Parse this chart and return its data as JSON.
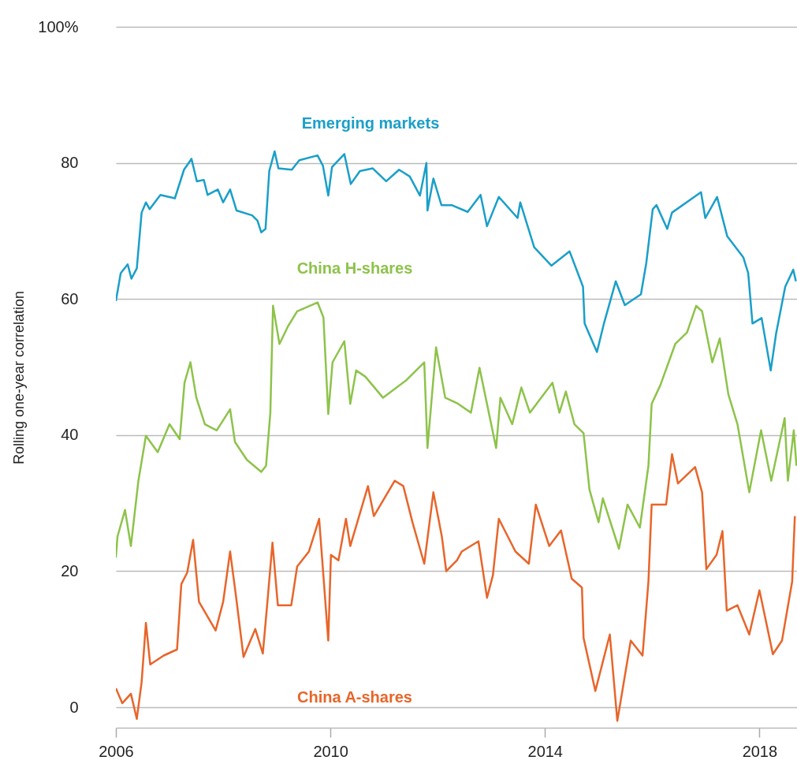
{
  "chart_data": {
    "type": "line",
    "ylabel": "Rolling one-year correlation",
    "xlim": [
      2006,
      2018.7
    ],
    "xticks": [
      2006,
      2010,
      2014,
      2018
    ],
    "ylim": [
      -3,
      100
    ],
    "yticks": [
      0,
      20,
      40,
      60,
      80,
      {
        "value": 100,
        "label": "100%"
      }
    ],
    "grid": "y",
    "legend": false,
    "series": [
      {
        "name": "Emerging markets",
        "color": "#1a9fc9",
        "x": [
          2006.0,
          2006.09,
          2006.22,
          2006.29,
          2006.39,
          2006.48,
          2006.56,
          2006.63,
          2006.83,
          2007.1,
          2007.27,
          2007.41,
          2007.51,
          2007.64,
          2007.71,
          2007.9,
          2008.0,
          2008.13,
          2008.25,
          2008.54,
          2008.64,
          2008.71,
          2008.79,
          2008.86,
          2008.96,
          2009.03,
          2009.28,
          2009.42,
          2009.76,
          2009.86,
          2009.96,
          2010.03,
          2010.26,
          2010.38,
          2010.55,
          2010.79,
          2011.04,
          2011.28,
          2011.48,
          2011.67,
          2011.79,
          2011.81,
          2011.92,
          2012.07,
          2012.26,
          2012.56,
          2012.8,
          2012.92,
          2013.14,
          2013.49,
          2013.54,
          2013.8,
          2014.12,
          2014.46,
          2014.71,
          2014.74,
          2014.97,
          2015.1,
          2015.32,
          2015.49,
          2015.79,
          2015.89,
          2016.01,
          2016.08,
          2016.28,
          2016.37,
          2016.91,
          2016.99,
          2017.21,
          2017.4,
          2017.7,
          2017.79,
          2017.87,
          2018.04,
          2018.21,
          2018.31,
          2018.48,
          2018.63,
          2018.68
        ],
        "values": [
          59.7,
          63.8,
          65.1,
          63.0,
          64.5,
          72.7,
          74.2,
          73.2,
          75.3,
          74.8,
          79.0,
          80.6,
          77.3,
          77.5,
          75.3,
          76.1,
          74.2,
          76.1,
          73.0,
          72.3,
          71.5,
          69.8,
          70.3,
          78.8,
          81.7,
          79.2,
          79.0,
          80.4,
          81.1,
          79.6,
          75.2,
          79.4,
          81.3,
          76.9,
          78.8,
          79.2,
          77.3,
          79.0,
          78.0,
          75.2,
          80.0,
          73.0,
          77.7,
          73.8,
          73.8,
          72.8,
          75.3,
          70.7,
          75.0,
          71.9,
          74.2,
          67.6,
          64.9,
          67.0,
          61.8,
          56.4,
          52.2,
          56.4,
          62.6,
          59.1,
          60.7,
          65.3,
          73.2,
          73.8,
          70.3,
          72.7,
          75.7,
          71.9,
          75.0,
          69.2,
          66.1,
          63.8,
          56.4,
          57.2,
          49.5,
          54.9,
          61.8,
          64.3,
          62.6
        ]
      },
      {
        "name": "China H-shares",
        "color": "#8dc34a",
        "x": [
          2006.0,
          2006.03,
          2006.17,
          2006.28,
          2006.42,
          2006.56,
          2006.78,
          2007.0,
          2007.19,
          2007.28,
          2007.39,
          2007.5,
          2007.66,
          2007.88,
          2008.13,
          2008.22,
          2008.44,
          2008.71,
          2008.8,
          2008.88,
          2008.93,
          2009.05,
          2009.21,
          2009.38,
          2009.76,
          2009.87,
          2009.96,
          2010.04,
          2010.26,
          2010.37,
          2010.48,
          2010.65,
          2010.98,
          2011.42,
          2011.75,
          2011.81,
          2011.97,
          2012.14,
          2012.36,
          2012.62,
          2012.78,
          2013.09,
          2013.17,
          2013.39,
          2013.56,
          2013.72,
          2014.14,
          2014.27,
          2014.39,
          2014.55,
          2014.72,
          2014.83,
          2015.0,
          2015.08,
          2015.38,
          2015.54,
          2015.77,
          2015.93,
          2015.99,
          2016.15,
          2016.43,
          2016.65,
          2016.82,
          2016.93,
          2017.12,
          2017.26,
          2017.42,
          2017.59,
          2017.81,
          2018.03,
          2018.22,
          2018.47,
          2018.53,
          2018.64,
          2018.69
        ],
        "values": [
          22.0,
          25.1,
          29.0,
          23.7,
          33.3,
          39.9,
          37.5,
          41.6,
          39.4,
          47.7,
          50.7,
          45.5,
          41.6,
          40.7,
          43.8,
          39.0,
          36.4,
          34.6,
          35.5,
          43.3,
          59.0,
          53.4,
          56.0,
          58.2,
          59.5,
          57.3,
          43.1,
          50.7,
          53.8,
          44.6,
          49.5,
          48.6,
          45.5,
          48.1,
          50.7,
          38.1,
          52.9,
          45.5,
          44.7,
          43.3,
          49.9,
          38.1,
          45.5,
          41.6,
          47.0,
          43.3,
          47.7,
          43.3,
          46.4,
          41.6,
          40.3,
          32.0,
          27.2,
          30.7,
          23.3,
          29.8,
          26.4,
          35.5,
          44.6,
          47.3,
          53.4,
          55.1,
          59.0,
          58.2,
          50.7,
          54.2,
          46.0,
          41.6,
          31.6,
          40.7,
          33.3,
          42.5,
          33.3,
          40.7,
          35.5
        ]
      },
      {
        "name": "China A-shares",
        "color": "#e8652a",
        "x": [
          2006.0,
          2006.12,
          2006.28,
          2006.39,
          2006.48,
          2006.56,
          2006.64,
          2006.89,
          2007.14,
          2007.22,
          2007.33,
          2007.44,
          2007.55,
          2007.86,
          2008.0,
          2008.13,
          2008.24,
          2008.38,
          2008.6,
          2008.74,
          2008.82,
          2008.92,
          2009.02,
          2009.27,
          2009.38,
          2009.6,
          2009.79,
          2009.96,
          2010.01,
          2010.15,
          2010.29,
          2010.37,
          2010.7,
          2010.81,
          2011.2,
          2011.36,
          2011.53,
          2011.75,
          2011.92,
          2012.08,
          2012.16,
          2012.36,
          2012.45,
          2012.76,
          2012.92,
          2013.03,
          2013.14,
          2013.45,
          2013.7,
          2013.83,
          2014.08,
          2014.3,
          2014.5,
          2014.69,
          2014.72,
          2014.94,
          2015.21,
          2015.35,
          2015.6,
          2015.82,
          2015.93,
          2015.99,
          2016.26,
          2016.37,
          2016.48,
          2016.8,
          2016.93,
          2017.01,
          2017.2,
          2017.31,
          2017.39,
          2017.59,
          2017.81,
          2018.0,
          2018.25,
          2018.42,
          2018.61,
          2018.66
        ],
        "values": [
          2.8,
          0.6,
          2.0,
          -1.7,
          3.7,
          12.4,
          6.3,
          7.6,
          8.5,
          18.1,
          19.8,
          24.6,
          15.5,
          11.3,
          15.5,
          22.9,
          16.3,
          7.4,
          11.5,
          7.9,
          15.0,
          24.2,
          15.0,
          15.0,
          20.7,
          22.9,
          27.7,
          9.8,
          22.4,
          21.6,
          27.7,
          23.7,
          32.5,
          28.1,
          33.3,
          32.5,
          27.2,
          21.1,
          31.6,
          25.0,
          20.0,
          21.6,
          22.9,
          24.4,
          16.1,
          19.4,
          27.7,
          22.9,
          21.1,
          29.8,
          23.7,
          26.0,
          18.9,
          17.6,
          10.2,
          2.4,
          10.7,
          -2.0,
          9.8,
          7.6,
          18.5,
          29.8,
          29.8,
          37.2,
          32.9,
          35.3,
          31.6,
          20.3,
          22.4,
          25.9,
          14.2,
          15.0,
          10.7,
          17.2,
          7.8,
          9.8,
          18.5,
          28.1
        ]
      }
    ]
  }
}
